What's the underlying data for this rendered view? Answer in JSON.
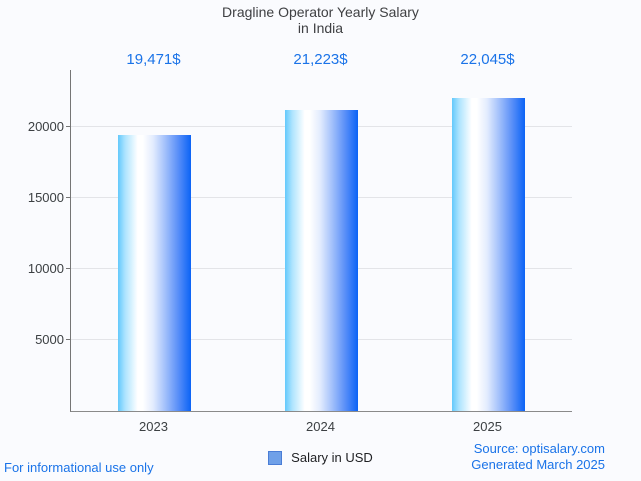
{
  "chart_data": {
    "type": "bar",
    "title_line1": "Dragline Operator Yearly Salary",
    "title_line2": "in India",
    "categories": [
      "2023",
      "2024",
      "2025"
    ],
    "values": [
      19471,
      21223,
      22045
    ],
    "value_labels": [
      "19,471$",
      "21,223$",
      "22,045$"
    ],
    "yticks": [
      5000,
      10000,
      15000,
      20000
    ],
    "ylim": [
      0,
      24050
    ],
    "grid": true,
    "legend_entries": [
      "Salary in USD"
    ],
    "legend_position": "bottom",
    "xlabel": "",
    "ylabel": "",
    "value_label_color": "#1a73e8",
    "bar_gradient": [
      "#63c9fc",
      "#ffffff",
      "#0b63f6"
    ]
  },
  "legend": {
    "label": "Salary in USD",
    "swatch_color": "#6fa0e8"
  },
  "footer": {
    "left": "For informational use only",
    "source": "Source: optisalary.com",
    "generated": "Generated March 2025"
  }
}
